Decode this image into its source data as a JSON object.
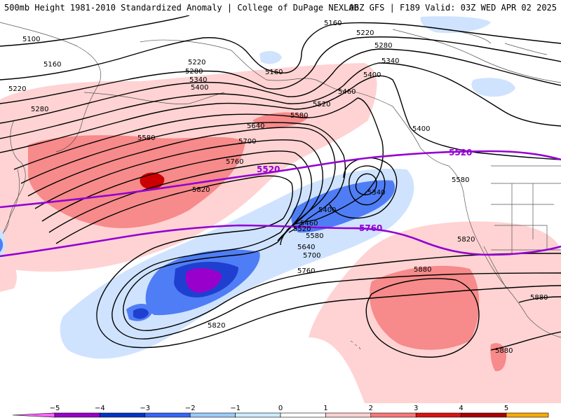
{
  "header": {
    "left": "500mb Height 1981-2010 Standardized Anomaly | College of DuPage NEXLAB",
    "right": "06Z GFS | F189 Valid: 03Z WED APR 02 2025"
  },
  "contour_labels": {
    "c5160a": "5160",
    "c5160b": "5160",
    "c5160c": "5160",
    "c5100": "5100",
    "c5220a": "5220",
    "c5220b": "5220",
    "c5220c": "5220",
    "c5280a": "5280",
    "c5280b": "5280",
    "c5280c": "5280",
    "c5340a": "5340",
    "c5340b": "5340",
    "c5340c": "5340",
    "c5400a": "5400",
    "c5400b": "5400",
    "c5400c": "5400",
    "c5400d": "5400",
    "c5460a": "5460",
    "c5460b": "5460",
    "c5520a": "5520",
    "c5520b": "5520",
    "c5580a": "5580",
    "c5580b": "5580",
    "c5580c": "5580",
    "c5580d": "5580",
    "c5640a": "5640",
    "c5640b": "5640",
    "c5700a": "5700",
    "c5700b": "5700",
    "c5760a": "5760",
    "c5760b": "5760",
    "c5820a": "5820",
    "c5820b": "5820",
    "c5820c": "5820",
    "c5880a": "5880",
    "c5880b": "5880",
    "c5880c": "5880"
  },
  "climo_labels": {
    "p5520a": "5520",
    "p5520b": "5520",
    "p5760": "5760"
  },
  "colorbar": {
    "ticks": [
      "−5",
      "−4",
      "−3",
      "−2",
      "−1",
      "0",
      "1",
      "2",
      "3",
      "4",
      "5"
    ],
    "colors": [
      "#ff66ff",
      "#9900cc",
      "#0033cc",
      "#3366ff",
      "#99ccff",
      "#ccecff",
      "#ffffff",
      "#ffd1d1",
      "#ff7777",
      "#dd1111",
      "#aa0000",
      "#ffaa00",
      "#ffd700"
    ]
  },
  "anomaly_colors": {
    "pos1": "#ffd3d3",
    "pos2": "#f78a8a",
    "pos3": "#cc0000",
    "neg1": "#cfe3ff",
    "neg2": "#4f7df5",
    "neg3": "#1f3fd0",
    "neg4": "#9a00cc",
    "climo_line": "#9400d3"
  }
}
